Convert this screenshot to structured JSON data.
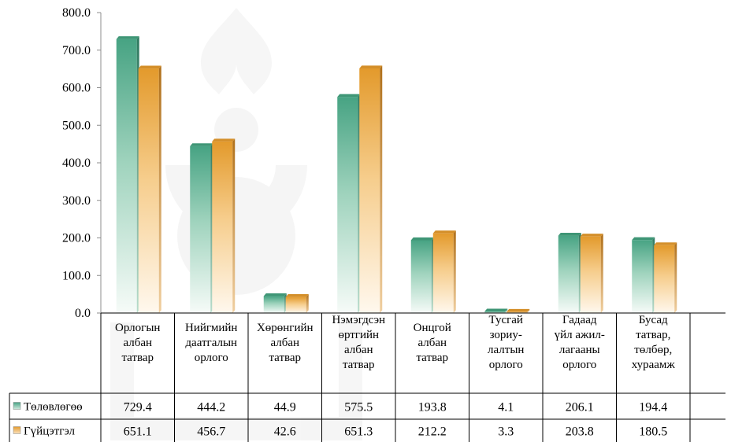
{
  "chart_data": {
    "type": "bar",
    "categories": [
      [
        "Орлогын",
        "албан",
        "татвар"
      ],
      [
        "Нийгмийн",
        "даатгалын",
        "орлого"
      ],
      [
        "Хөрөнгийн",
        "албан",
        "татвар"
      ],
      [
        "Нэмэгдсэн",
        "өртгийн",
        "албан",
        "татвар"
      ],
      [
        "Онцгой",
        "албан",
        "татвар"
      ],
      [
        "Тусгай",
        "зориу-",
        "лалтын",
        "орлого"
      ],
      [
        "Гадаад",
        "үйл ажил-",
        "лагааны",
        "орлого"
      ],
      [
        "Бусад",
        "татвар,",
        "төлбөр,",
        "хураамж"
      ]
    ],
    "series": [
      {
        "name": "Төлөвлөгөө",
        "color": "#4fa88a",
        "values": [
          729.4,
          444.2,
          44.9,
          575.5,
          193.8,
          4.1,
          206.1,
          194.4
        ],
        "labels": [
          "729.4",
          "444.2",
          "44.9",
          "575.5",
          "193.8",
          "4.1",
          "206.1",
          "194.4"
        ]
      },
      {
        "name": "Гүйцэтгэл",
        "color": "#e3a23a",
        "values": [
          651.1,
          456.7,
          42.6,
          651.3,
          212.2,
          3.3,
          203.8,
          180.5
        ],
        "labels": [
          "651.1",
          "456.7",
          "42.6",
          "651.3",
          "212.2",
          "3.3",
          "203.8",
          "180.5"
        ]
      }
    ],
    "y_ticks": [
      "0.0",
      "100.0",
      "200.0",
      "300.0",
      "400.0",
      "500.0",
      "600.0",
      "700.0",
      "800.0"
    ],
    "ylim": [
      0,
      800
    ],
    "grid": false,
    "legend": "data-table-left"
  }
}
